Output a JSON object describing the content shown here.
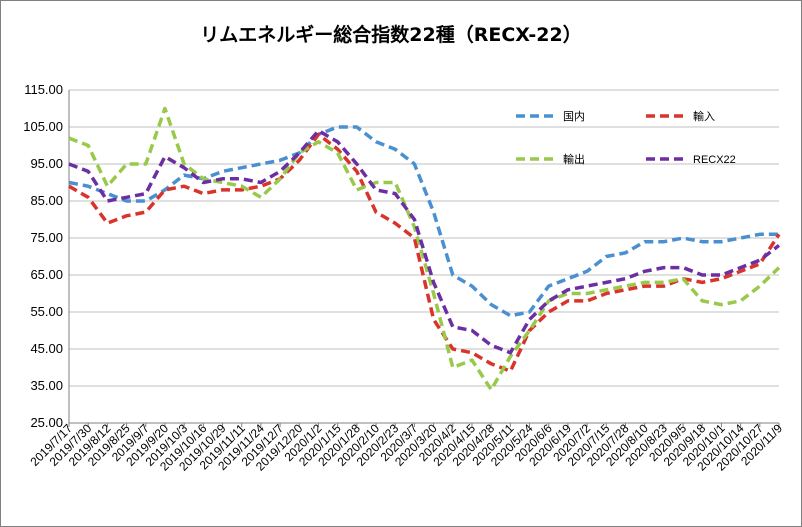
{
  "chart_data": {
    "type": "line",
    "title": "リムエネルギー総合指数22種（RECX-22）",
    "xlabel": "",
    "ylabel": "",
    "ylim": [
      25,
      115
    ],
    "yticks": [
      "25.00",
      "35.00",
      "45.00",
      "55.00",
      "65.00",
      "75.00",
      "85.00",
      "95.00",
      "105.00",
      "115.00"
    ],
    "grid": "horizontal",
    "legend_position": "top-right",
    "x": [
      "2019/7/17",
      "2019/7/30",
      "2019/8/12",
      "2019/8/25",
      "2019/9/7",
      "2019/9/20",
      "2019/10/3",
      "2019/10/16",
      "2019/10/29",
      "2019/11/11",
      "2019/11/24",
      "2019/12/7",
      "2019/12/20",
      "2020/1/2",
      "2020/1/15",
      "2020/1/28",
      "2020/2/10",
      "2020/2/23",
      "2020/3/7",
      "2020/3/20",
      "2020/4/2",
      "2020/4/15",
      "2020/4/28",
      "2020/5/11",
      "2020/5/24",
      "2020/6/6",
      "2020/6/19",
      "2020/7/2",
      "2020/7/15",
      "2020/7/28",
      "2020/8/10",
      "2020/8/23",
      "2020/9/5",
      "2020/9/18",
      "2020/10/1",
      "2020/10/14",
      "2020/10/27",
      "2020/11/9"
    ],
    "series": [
      {
        "name": "国内",
        "color": "#4a90d0",
        "values": [
          90,
          89,
          87,
          85,
          85,
          88,
          92,
          91,
          93,
          94,
          95,
          96,
          98,
          103,
          105,
          105,
          101,
          99,
          95,
          82,
          65,
          62,
          57,
          54,
          55,
          62,
          64,
          66,
          70,
          71,
          74,
          74,
          75,
          74,
          74,
          75,
          76,
          76
        ]
      },
      {
        "name": "輸入",
        "color": "#d9342b",
        "values": [
          89,
          86,
          79,
          81,
          82,
          88,
          89,
          87,
          88,
          88,
          89,
          91,
          96,
          103,
          99,
          93,
          82,
          79,
          75,
          53,
          45,
          44,
          41,
          39,
          50,
          55,
          58,
          58,
          60,
          61,
          62,
          62,
          64,
          63,
          64,
          66,
          68,
          76
        ]
      },
      {
        "name": "輸出",
        "color": "#99c94a",
        "values": [
          102,
          100,
          89,
          95,
          95,
          110,
          95,
          91,
          90,
          89,
          86,
          91,
          98,
          101,
          98,
          88,
          90,
          90,
          78,
          60,
          40,
          42,
          34,
          43,
          50,
          58,
          60,
          60,
          61,
          62,
          63,
          63,
          64,
          58,
          57,
          58,
          62,
          67
        ]
      },
      {
        "name": "RECX22",
        "color": "#6b2fa3",
        "values": [
          95,
          93,
          85,
          86,
          87,
          97,
          94,
          90,
          91,
          91,
          90,
          93,
          98,
          104,
          101,
          95,
          88,
          87,
          80,
          63,
          51,
          50,
          46,
          44,
          53,
          58,
          61,
          62,
          63,
          64,
          66,
          67,
          67,
          65,
          65,
          67,
          69,
          73
        ]
      }
    ]
  }
}
